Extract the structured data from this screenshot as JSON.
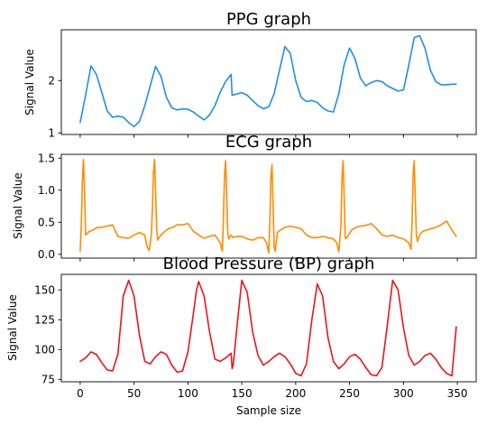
{
  "chart_data": [
    {
      "type": "line",
      "title": "PPG graph",
      "xlabel": "",
      "ylabel": "Signal Value",
      "xlim": [
        -17.5,
        367.5
      ],
      "ylim": [
        0.97,
        2.97
      ],
      "yticks": [
        1,
        2
      ],
      "show_xtick_labels": false,
      "grid": false,
      "color": "#1f8fe6",
      "x": [
        0,
        5,
        10,
        15,
        20,
        25,
        30,
        35,
        40,
        45,
        50,
        55,
        60,
        65,
        70,
        75,
        80,
        85,
        90,
        95,
        100,
        105,
        110,
        115,
        120,
        125,
        130,
        135,
        140,
        141,
        145,
        150,
        155,
        160,
        165,
        170,
        175,
        180,
        185,
        190,
        195,
        200,
        205,
        210,
        215,
        220,
        225,
        230,
        235,
        240,
        245,
        250,
        255,
        260,
        265,
        270,
        275,
        280,
        285,
        290,
        295,
        300,
        305,
        310,
        315,
        320,
        325,
        330,
        335,
        340,
        345,
        349
      ],
      "y": [
        1.2,
        1.72,
        2.28,
        2.12,
        1.78,
        1.42,
        1.3,
        1.32,
        1.3,
        1.2,
        1.12,
        1.22,
        1.52,
        1.9,
        2.27,
        2.08,
        1.68,
        1.48,
        1.44,
        1.46,
        1.45,
        1.4,
        1.32,
        1.25,
        1.34,
        1.52,
        1.78,
        1.98,
        2.12,
        1.72,
        1.74,
        1.77,
        1.72,
        1.62,
        1.52,
        1.46,
        1.5,
        1.75,
        2.2,
        2.65,
        2.52,
        2.0,
        1.68,
        1.6,
        1.62,
        1.58,
        1.48,
        1.42,
        1.4,
        1.75,
        2.3,
        2.62,
        2.42,
        2.05,
        1.9,
        1.96,
        2.0,
        1.98,
        1.9,
        1.85,
        1.8,
        1.82,
        2.3,
        2.82,
        2.86,
        2.62,
        2.2,
        1.98,
        1.92,
        1.92,
        1.93,
        1.93
      ]
    },
    {
      "type": "line",
      "title": "ECG graph",
      "xlabel": "",
      "ylabel": "Signal Value",
      "xlim": [
        -17.5,
        367.5
      ],
      "ylim": [
        -0.06,
        1.56
      ],
      "yticks": [
        0.0,
        0.5,
        1.0,
        1.5
      ],
      "show_xtick_labels": false,
      "grid": false,
      "color": "#ff8c00",
      "x": [
        0,
        1,
        2,
        3,
        4,
        5,
        8,
        12,
        16,
        20,
        25,
        30,
        35,
        40,
        45,
        50,
        55,
        60,
        62,
        64,
        66,
        67,
        68,
        69,
        70,
        71,
        72,
        74,
        78,
        82,
        86,
        90,
        95,
        100,
        105,
        110,
        115,
        120,
        125,
        130,
        132,
        133,
        134,
        135,
        136,
        137,
        138,
        140,
        142,
        145,
        150,
        155,
        160,
        165,
        170,
        173,
        175,
        176,
        177,
        178,
        179,
        180,
        181,
        183,
        186,
        190,
        195,
        200,
        205,
        210,
        215,
        220,
        225,
        230,
        235,
        238,
        240,
        242,
        243,
        244,
        245,
        246,
        247,
        249,
        252,
        256,
        260,
        265,
        270,
        275,
        280,
        285,
        290,
        295,
        300,
        305,
        307,
        308,
        309,
        310,
        311,
        312,
        313,
        315,
        318,
        322,
        326,
        330,
        335,
        340,
        345,
        349
      ],
      "y": [
        0.05,
        0.42,
        1.12,
        1.48,
        1.0,
        0.3,
        0.35,
        0.38,
        0.42,
        0.42,
        0.44,
        0.46,
        0.28,
        0.26,
        0.25,
        0.3,
        0.34,
        0.3,
        0.12,
        0.06,
        0.3,
        0.7,
        1.3,
        1.48,
        1.0,
        0.4,
        0.22,
        0.28,
        0.35,
        0.4,
        0.42,
        0.46,
        0.46,
        0.48,
        0.36,
        0.3,
        0.25,
        0.28,
        0.3,
        0.18,
        0.05,
        0.6,
        1.25,
        1.46,
        0.9,
        0.32,
        0.24,
        0.3,
        0.26,
        0.28,
        0.28,
        0.24,
        0.22,
        0.26,
        0.26,
        0.18,
        0.02,
        0.5,
        1.2,
        1.4,
        0.8,
        0.1,
        0.05,
        0.34,
        0.38,
        0.42,
        0.44,
        0.42,
        0.4,
        0.3,
        0.26,
        0.26,
        0.28,
        0.26,
        0.24,
        0.18,
        0.04,
        0.45,
        1.2,
        1.46,
        0.9,
        0.25,
        0.25,
        0.3,
        0.38,
        0.42,
        0.44,
        0.45,
        0.48,
        0.4,
        0.3,
        0.28,
        0.3,
        0.26,
        0.24,
        0.18,
        0.08,
        0.5,
        1.25,
        1.46,
        0.85,
        0.3,
        0.2,
        0.3,
        0.36,
        0.38,
        0.4,
        0.42,
        0.46,
        0.52,
        0.38,
        0.28
      ]
    },
    {
      "type": "line",
      "title": "Blood Pressure (BP) graph",
      "xlabel": "Sample size",
      "ylabel": "Signal Value",
      "xlim": [
        -17.5,
        367.5
      ],
      "ylim": [
        73,
        163
      ],
      "yticks": [
        75,
        100,
        125,
        150
      ],
      "xticks": [
        0,
        50,
        100,
        150,
        200,
        250,
        300,
        350
      ],
      "show_xtick_labels": true,
      "grid": false,
      "color": "#e8151a",
      "x": [
        0,
        5,
        10,
        15,
        20,
        25,
        30,
        35,
        38,
        40,
        45,
        50,
        55,
        60,
        65,
        70,
        75,
        80,
        85,
        90,
        95,
        100,
        105,
        108,
        110,
        115,
        120,
        125,
        130,
        135,
        140,
        141,
        142,
        145,
        150,
        155,
        160,
        165,
        170,
        175,
        180,
        185,
        190,
        195,
        200,
        205,
        210,
        215,
        220,
        225,
        230,
        235,
        240,
        245,
        250,
        255,
        260,
        265,
        270,
        275,
        280,
        285,
        290,
        295,
        300,
        305,
        310,
        315,
        320,
        325,
        330,
        335,
        340,
        345,
        349
      ],
      "y": [
        90,
        93,
        98,
        96,
        89,
        83,
        82,
        96,
        125,
        145,
        158,
        145,
        112,
        90,
        88,
        94,
        98,
        96,
        87,
        81,
        82,
        98,
        130,
        150,
        157,
        145,
        115,
        92,
        90,
        93,
        97,
        84,
        87,
        115,
        158,
        148,
        115,
        95,
        87,
        90,
        94,
        97,
        94,
        88,
        80,
        78,
        88,
        125,
        155,
        145,
        110,
        90,
        84,
        88,
        94,
        96,
        92,
        85,
        79,
        78,
        85,
        120,
        158,
        150,
        118,
        95,
        87,
        90,
        95,
        97,
        92,
        85,
        80,
        78,
        119
      ]
    }
  ]
}
